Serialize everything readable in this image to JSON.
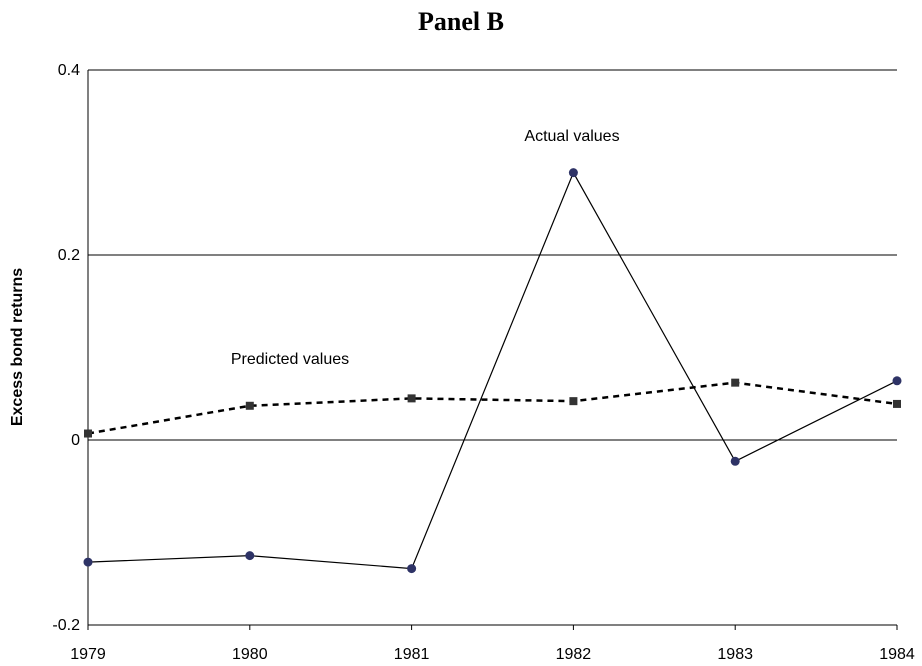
{
  "chart_data": {
    "type": "line",
    "title": "Panel B",
    "ylabel": "Excess bond returns",
    "xlabel": "",
    "categories": [
      "1979",
      "1980",
      "1981",
      "1982",
      "1983",
      "1984"
    ],
    "ylim": [
      -0.2,
      0.4
    ],
    "yticks": [
      -0.2,
      0,
      0.2,
      0.4
    ],
    "ytick_labels": [
      "-0.2",
      "0",
      "0.2",
      "0.4"
    ],
    "grid_y": true,
    "series": [
      {
        "values": [
          -0.132,
          -0.125,
          -0.139,
          0.289,
          -0.023,
          0.064
        ],
        "color": "#000000",
        "marker": "circle",
        "marker_color": "#2e3366",
        "line_style": "solid"
      },
      {
        "values": [
          0.007,
          0.037,
          0.045,
          0.042,
          0.062,
          0.039
        ],
        "color": "#000000",
        "marker": "square",
        "marker_color": "#333333",
        "line_style": "dashed"
      }
    ],
    "annotations": [
      {
        "text": "Actual values",
        "series_index": 0
      },
      {
        "text": "Predicted values",
        "series_index": 1
      }
    ]
  }
}
